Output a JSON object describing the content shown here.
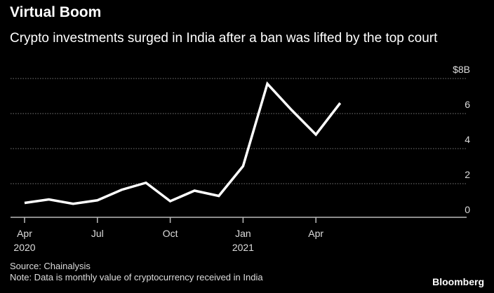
{
  "title": "Virtual Boom",
  "subtitle": "Crypto investments surged in India after a ban was lifted by the top court",
  "source": "Source: Chainalysis",
  "note": "Note: Data is monthly value of cryptocurrency received in India",
  "logo": "Bloomberg",
  "chart_data": {
    "type": "line",
    "x": [
      "2020-04",
      "2020-05",
      "2020-06",
      "2020-07",
      "2020-08",
      "2020-09",
      "2020-10",
      "2020-11",
      "2020-12",
      "2021-01",
      "2021-02",
      "2021-03",
      "2021-04",
      "2021-05"
    ],
    "values": [
      0.9,
      1.1,
      0.85,
      1.05,
      1.65,
      2.05,
      1.0,
      1.6,
      1.3,
      3.0,
      7.7,
      6.2,
      4.8,
      6.6
    ],
    "yunit_label": "$8B",
    "ylim": [
      0,
      8
    ],
    "yticks": [
      {
        "value": 0,
        "label": "0"
      },
      {
        "value": 2,
        "label": "2"
      },
      {
        "value": 4,
        "label": "4"
      },
      {
        "value": 6,
        "label": "6"
      },
      {
        "value": 8,
        "label": "$8B"
      }
    ],
    "xticks": [
      {
        "index": 0,
        "label": "Apr",
        "sublabel": "2020"
      },
      {
        "index": 3,
        "label": "Jul",
        "sublabel": ""
      },
      {
        "index": 6,
        "label": "Oct",
        "sublabel": ""
      },
      {
        "index": 9,
        "label": "Jan",
        "sublabel": "2021"
      },
      {
        "index": 12,
        "label": "Apr",
        "sublabel": ""
      }
    ],
    "grid": true,
    "line_color": "#ffffff",
    "grid_color": "#777777"
  }
}
